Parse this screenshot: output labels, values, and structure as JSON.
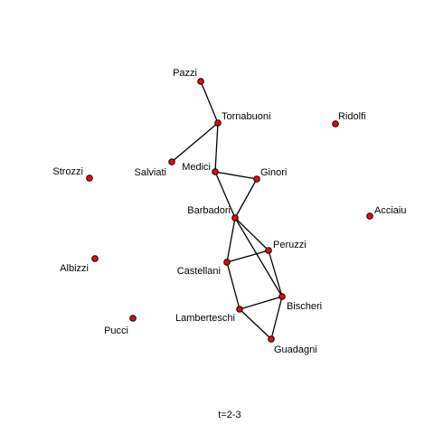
{
  "caption": "t=2-3",
  "colors": {
    "node_fill": "#e01010",
    "node_stroke": "#000000",
    "edge": "#000000",
    "text": "#000000",
    "background": "#ffffff"
  },
  "nodes": [
    {
      "id": "pazzi",
      "label": "Pazzi"
    },
    {
      "id": "tornabuoni",
      "label": "Tornabuoni"
    },
    {
      "id": "ridolfi",
      "label": "Ridolfi"
    },
    {
      "id": "strozzi",
      "label": "Strozzi"
    },
    {
      "id": "salviati",
      "label": "Salviati"
    },
    {
      "id": "medici",
      "label": "Medici"
    },
    {
      "id": "ginori",
      "label": "Ginori"
    },
    {
      "id": "barbadori",
      "label": "Barbadori"
    },
    {
      "id": "acciaiuoli",
      "label": "Acciaiu"
    },
    {
      "id": "peruzzi",
      "label": "Peruzzi"
    },
    {
      "id": "albizzi",
      "label": "Albizzi"
    },
    {
      "id": "castellani",
      "label": "Castellani"
    },
    {
      "id": "bischeri",
      "label": "Bischeri"
    },
    {
      "id": "lamberteschi",
      "label": "Lamberteschi"
    },
    {
      "id": "pucci",
      "label": "Pucci"
    },
    {
      "id": "guadagni",
      "label": "Guadagni"
    }
  ],
  "edges": [
    {
      "source": "pazzi",
      "target": "tornabuoni"
    },
    {
      "source": "tornabuoni",
      "target": "salviati"
    },
    {
      "source": "tornabuoni",
      "target": "medici"
    },
    {
      "source": "medici",
      "target": "ginori"
    },
    {
      "source": "medici",
      "target": "barbadori"
    },
    {
      "source": "ginori",
      "target": "barbadori"
    },
    {
      "source": "barbadori",
      "target": "peruzzi"
    },
    {
      "source": "barbadori",
      "target": "castellani"
    },
    {
      "source": "barbadori",
      "target": "bischeri"
    },
    {
      "source": "peruzzi",
      "target": "castellani"
    },
    {
      "source": "peruzzi",
      "target": "bischeri"
    },
    {
      "source": "castellani",
      "target": "lamberteschi"
    },
    {
      "source": "lamberteschi",
      "target": "bischeri"
    },
    {
      "source": "lamberteschi",
      "target": "guadagni"
    },
    {
      "source": "bischeri",
      "target": "guadagni"
    }
  ]
}
